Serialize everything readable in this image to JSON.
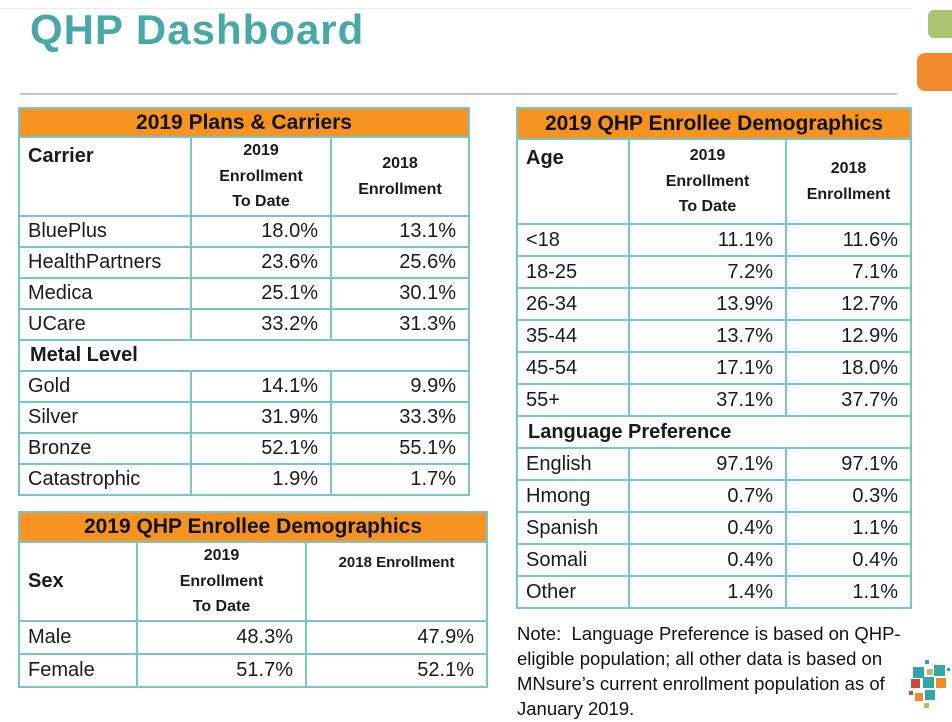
{
  "page": {
    "title": "QHP Dashboard"
  },
  "theme": {
    "title_teal": "#49A8A5",
    "table_border_teal": "#7AC6C4",
    "header_band_orange": "#F79421",
    "corner_accent_green": "#A9C572",
    "corner_accent_orange": "#EF8B2D",
    "logo_teal": "#33A6A2",
    "logo_green": "#A9C572",
    "logo_orange": "#EF8B2D",
    "logo_red": "#C9473B"
  },
  "note": {
    "text": "Note:  Language Preference is based on QHP-eligible population; all other data is based on MNsure’s current enrollment population as of January 2019."
  },
  "chart_data": [
    {
      "type": "table",
      "title": "2019 Plans & Carriers",
      "columns": [
        [
          "Carrier"
        ],
        [
          "2019",
          "Enrollment",
          "To Date"
        ],
        [
          "2018",
          "Enrollment"
        ]
      ],
      "rows": [
        {
          "label": "BluePlus",
          "values": [
            "18.0%",
            "13.1%"
          ]
        },
        {
          "label": "HealthPartners",
          "values": [
            "23.6%",
            "25.6%"
          ]
        },
        {
          "label": "Medica",
          "values": [
            "25.1%",
            "30.1%"
          ]
        },
        {
          "label": "UCare",
          "values": [
            "33.2%",
            "31.3%"
          ]
        },
        {
          "section": "Metal Level"
        },
        {
          "label": "Gold",
          "values": [
            "14.1%",
            "9.9%"
          ]
        },
        {
          "label": "Silver",
          "values": [
            "31.9%",
            "33.3%"
          ]
        },
        {
          "label": "Bronze",
          "values": [
            "52.1%",
            "55.1%"
          ]
        },
        {
          "label": "Catastrophic",
          "values": [
            "1.9%",
            "1.7%"
          ]
        }
      ]
    },
    {
      "type": "table",
      "title": "2019 QHP Enrollee Demographics",
      "columns": [
        [
          "Sex"
        ],
        [
          "2019",
          "Enrollment",
          "To Date"
        ],
        [
          "2018 Enrollment"
        ]
      ],
      "rows": [
        {
          "label": "Male",
          "values": [
            "48.3%",
            "47.9%"
          ]
        },
        {
          "label": "Female",
          "values": [
            "51.7%",
            "52.1%"
          ]
        }
      ]
    },
    {
      "type": "table",
      "title": "2019 QHP Enrollee Demographics",
      "columns": [
        [
          "Age"
        ],
        [
          "2019",
          "Enrollment",
          "To Date"
        ],
        [
          "2018",
          "Enrollment"
        ]
      ],
      "rows": [
        {
          "label": "<18",
          "values": [
            "11.1%",
            "11.6%"
          ]
        },
        {
          "label": "18-25",
          "values": [
            "7.2%",
            "7.1%"
          ]
        },
        {
          "label": "26-34",
          "values": [
            "13.9%",
            "12.7%"
          ]
        },
        {
          "label": "35-44",
          "values": [
            "13.7%",
            "12.9%"
          ]
        },
        {
          "label": "45-54",
          "values": [
            "17.1%",
            "18.0%"
          ]
        },
        {
          "label": "55+",
          "values": [
            "37.1%",
            "37.7%"
          ]
        },
        {
          "section": "Language Preference"
        },
        {
          "label": "English",
          "values": [
            "97.1%",
            "97.1%"
          ]
        },
        {
          "label": "Hmong",
          "values": [
            "0.7%",
            "0.3%"
          ]
        },
        {
          "label": "Spanish",
          "values": [
            "0.4%",
            "1.1%"
          ]
        },
        {
          "label": "Somali",
          "values": [
            "0.4%",
            "0.4%"
          ]
        },
        {
          "label": "Other",
          "values": [
            "1.4%",
            "1.1%"
          ]
        }
      ]
    }
  ]
}
